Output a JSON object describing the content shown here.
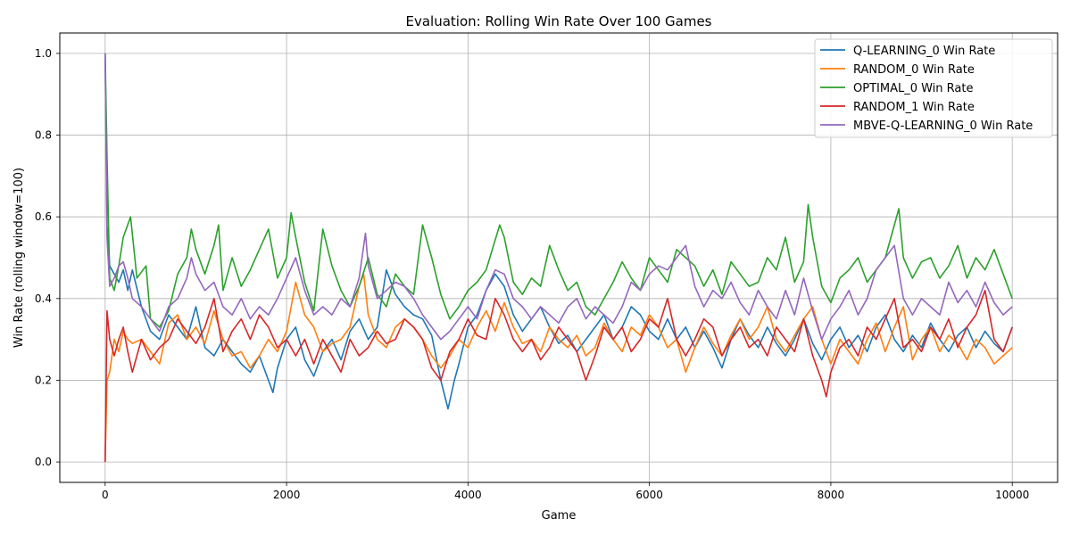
{
  "chart_data": {
    "type": "line",
    "title": "Evaluation: Rolling Win Rate Over 100 Games",
    "xlabel": "Game",
    "ylabel": "Win Rate (rolling window=100)",
    "xlim": [
      -500,
      10500
    ],
    "ylim": [
      -0.05,
      1.05
    ],
    "xticks": [
      0,
      2000,
      4000,
      6000,
      8000,
      10000
    ],
    "xtick_labels": [
      "0",
      "2000",
      "4000",
      "6000",
      "8000",
      "10000"
    ],
    "yticks": [
      0.0,
      0.2,
      0.4,
      0.6,
      0.8,
      1.0
    ],
    "ytick_labels": [
      "0.0",
      "0.2",
      "0.4",
      "0.6",
      "0.8",
      "1.0"
    ],
    "grid": true,
    "legend_position": "top-right",
    "series": [
      {
        "name": "Q-LEARNING_0 Win Rate",
        "color": "#1f77b4",
        "x": [
          0,
          20,
          50,
          100,
          150,
          200,
          250,
          300,
          400,
          500,
          600,
          700,
          800,
          900,
          1000,
          1100,
          1200,
          1300,
          1400,
          1500,
          1600,
          1700,
          1800,
          1850,
          1900,
          2000,
          2100,
          2200,
          2300,
          2400,
          2500,
          2600,
          2700,
          2800,
          2900,
          3000,
          3100,
          3200,
          3300,
          3400,
          3500,
          3600,
          3700,
          3780,
          3850,
          3900,
          4000,
          4100,
          4200,
          4300,
          4400,
          4500,
          4600,
          4700,
          4800,
          4900,
          5000,
          5100,
          5200,
          5300,
          5400,
          5500,
          5600,
          5700,
          5800,
          5900,
          6000,
          6100,
          6200,
          6300,
          6400,
          6500,
          6600,
          6700,
          6800,
          6900,
          7000,
          7100,
          7200,
          7300,
          7400,
          7500,
          7600,
          7700,
          7800,
          7900,
          8000,
          8100,
          8200,
          8300,
          8400,
          8500,
          8600,
          8700,
          8800,
          8900,
          9000,
          9100,
          9200,
          9300,
          9400,
          9500,
          9600,
          9700,
          9800,
          9900,
          10000
        ],
        "y": [
          1.0,
          0.58,
          0.48,
          0.46,
          0.44,
          0.47,
          0.42,
          0.47,
          0.38,
          0.32,
          0.3,
          0.36,
          0.33,
          0.3,
          0.38,
          0.28,
          0.26,
          0.3,
          0.27,
          0.24,
          0.22,
          0.26,
          0.2,
          0.17,
          0.23,
          0.3,
          0.33,
          0.25,
          0.21,
          0.27,
          0.3,
          0.25,
          0.32,
          0.35,
          0.3,
          0.33,
          0.47,
          0.41,
          0.38,
          0.36,
          0.35,
          0.31,
          0.2,
          0.13,
          0.2,
          0.24,
          0.33,
          0.36,
          0.42,
          0.46,
          0.43,
          0.36,
          0.32,
          0.35,
          0.38,
          0.33,
          0.29,
          0.31,
          0.27,
          0.3,
          0.33,
          0.36,
          0.3,
          0.33,
          0.38,
          0.36,
          0.32,
          0.3,
          0.35,
          0.3,
          0.33,
          0.28,
          0.32,
          0.28,
          0.23,
          0.3,
          0.35,
          0.31,
          0.28,
          0.33,
          0.29,
          0.26,
          0.3,
          0.35,
          0.29,
          0.25,
          0.3,
          0.33,
          0.28,
          0.31,
          0.27,
          0.33,
          0.36,
          0.3,
          0.27,
          0.31,
          0.28,
          0.34,
          0.3,
          0.27,
          0.31,
          0.33,
          0.28,
          0.32,
          0.29,
          0.27,
          0.33
        ]
      },
      {
        "name": "RANDOM_0 Win Rate",
        "color": "#ff7f0e",
        "x": [
          0,
          20,
          50,
          100,
          150,
          200,
          250,
          300,
          400,
          500,
          600,
          700,
          800,
          900,
          1000,
          1100,
          1200,
          1300,
          1400,
          1500,
          1600,
          1700,
          1800,
          1900,
          2000,
          2100,
          2200,
          2300,
          2400,
          2500,
          2600,
          2700,
          2800,
          2850,
          2900,
          3000,
          3100,
          3200,
          3300,
          3400,
          3500,
          3600,
          3700,
          3800,
          3900,
          4000,
          4100,
          4200,
          4300,
          4400,
          4500,
          4600,
          4700,
          4800,
          4900,
          5000,
          5100,
          5200,
          5300,
          5400,
          5500,
          5600,
          5700,
          5800,
          5900,
          6000,
          6100,
          6200,
          6300,
          6400,
          6500,
          6600,
          6700,
          6800,
          6900,
          7000,
          7100,
          7200,
          7300,
          7400,
          7500,
          7600,
          7700,
          7800,
          7900,
          8000,
          8100,
          8200,
          8300,
          8400,
          8500,
          8600,
          8700,
          8800,
          8900,
          9000,
          9100,
          9200,
          9300,
          9400,
          9500,
          9600,
          9700,
          9800,
          9900,
          10000
        ],
        "y": [
          0.0,
          0.2,
          0.22,
          0.3,
          0.27,
          0.32,
          0.3,
          0.29,
          0.3,
          0.27,
          0.24,
          0.34,
          0.36,
          0.3,
          0.33,
          0.29,
          0.37,
          0.3,
          0.26,
          0.27,
          0.23,
          0.26,
          0.3,
          0.27,
          0.32,
          0.44,
          0.36,
          0.33,
          0.27,
          0.29,
          0.3,
          0.33,
          0.43,
          0.46,
          0.36,
          0.3,
          0.28,
          0.33,
          0.35,
          0.33,
          0.3,
          0.26,
          0.23,
          0.26,
          0.3,
          0.28,
          0.33,
          0.37,
          0.32,
          0.39,
          0.33,
          0.29,
          0.3,
          0.27,
          0.33,
          0.3,
          0.28,
          0.31,
          0.26,
          0.28,
          0.34,
          0.3,
          0.27,
          0.33,
          0.31,
          0.36,
          0.33,
          0.28,
          0.3,
          0.22,
          0.28,
          0.33,
          0.29,
          0.26,
          0.31,
          0.35,
          0.3,
          0.33,
          0.38,
          0.3,
          0.27,
          0.31,
          0.35,
          0.38,
          0.3,
          0.24,
          0.3,
          0.27,
          0.24,
          0.3,
          0.34,
          0.27,
          0.33,
          0.38,
          0.25,
          0.3,
          0.33,
          0.27,
          0.31,
          0.29,
          0.25,
          0.3,
          0.28,
          0.24,
          0.26,
          0.28
        ]
      },
      {
        "name": "OPTIMAL_0 Win Rate",
        "color": "#2ca02c",
        "x": [
          0,
          20,
          50,
          100,
          150,
          200,
          280,
          350,
          450,
          500,
          600,
          700,
          800,
          900,
          950,
          1000,
          1100,
          1200,
          1250,
          1300,
          1400,
          1500,
          1600,
          1700,
          1800,
          1900,
          2000,
          2050,
          2100,
          2200,
          2300,
          2400,
          2500,
          2600,
          2700,
          2800,
          2900,
          3000,
          3100,
          3200,
          3300,
          3400,
          3500,
          3600,
          3700,
          3800,
          3900,
          4000,
          4100,
          4200,
          4350,
          4400,
          4500,
          4600,
          4700,
          4800,
          4900,
          5000,
          5100,
          5200,
          5300,
          5400,
          5500,
          5600,
          5700,
          5800,
          5900,
          6000,
          6100,
          6200,
          6300,
          6400,
          6500,
          6600,
          6700,
          6800,
          6900,
          7000,
          7100,
          7200,
          7300,
          7400,
          7500,
          7600,
          7700,
          7750,
          7800,
          7900,
          8000,
          8100,
          8200,
          8300,
          8400,
          8500,
          8600,
          8700,
          8750,
          8800,
          8900,
          9000,
          9100,
          9200,
          9300,
          9400,
          9500,
          9600,
          9700,
          9800,
          9900,
          10000
        ],
        "y": [
          1.0,
          0.75,
          0.45,
          0.42,
          0.48,
          0.55,
          0.6,
          0.45,
          0.48,
          0.35,
          0.33,
          0.37,
          0.46,
          0.5,
          0.57,
          0.52,
          0.46,
          0.53,
          0.58,
          0.42,
          0.5,
          0.43,
          0.47,
          0.52,
          0.57,
          0.45,
          0.5,
          0.61,
          0.55,
          0.44,
          0.37,
          0.57,
          0.48,
          0.42,
          0.38,
          0.43,
          0.5,
          0.41,
          0.38,
          0.46,
          0.43,
          0.41,
          0.58,
          0.5,
          0.41,
          0.35,
          0.38,
          0.42,
          0.44,
          0.47,
          0.58,
          0.55,
          0.44,
          0.41,
          0.45,
          0.43,
          0.53,
          0.47,
          0.42,
          0.44,
          0.38,
          0.36,
          0.4,
          0.44,
          0.49,
          0.45,
          0.42,
          0.5,
          0.47,
          0.44,
          0.52,
          0.5,
          0.48,
          0.43,
          0.47,
          0.41,
          0.49,
          0.46,
          0.43,
          0.44,
          0.5,
          0.47,
          0.55,
          0.44,
          0.49,
          0.63,
          0.55,
          0.43,
          0.39,
          0.45,
          0.47,
          0.5,
          0.44,
          0.47,
          0.5,
          0.58,
          0.62,
          0.5,
          0.45,
          0.49,
          0.5,
          0.45,
          0.48,
          0.53,
          0.45,
          0.5,
          0.47,
          0.52,
          0.46,
          0.4
        ]
      },
      {
        "name": "RANDOM_1 Win Rate",
        "color": "#d62728",
        "x": [
          0,
          20,
          50,
          100,
          150,
          200,
          250,
          300,
          400,
          500,
          600,
          700,
          800,
          900,
          1000,
          1100,
          1200,
          1300,
          1400,
          1500,
          1600,
          1700,
          1800,
          1900,
          2000,
          2100,
          2200,
          2300,
          2400,
          2500,
          2600,
          2700,
          2800,
          2900,
          3000,
          3100,
          3200,
          3300,
          3400,
          3500,
          3600,
          3700,
          3800,
          3900,
          4000,
          4100,
          4200,
          4300,
          4400,
          4500,
          4600,
          4700,
          4800,
          4900,
          5000,
          5100,
          5200,
          5300,
          5400,
          5500,
          5600,
          5700,
          5800,
          5900,
          6000,
          6100,
          6200,
          6300,
          6400,
          6500,
          6600,
          6700,
          6800,
          6900,
          7000,
          7100,
          7200,
          7300,
          7400,
          7500,
          7600,
          7700,
          7800,
          7900,
          7950,
          8000,
          8100,
          8200,
          8300,
          8400,
          8500,
          8600,
          8700,
          8800,
          8900,
          9000,
          9100,
          9200,
          9300,
          9400,
          9500,
          9600,
          9700,
          9800,
          9900,
          10000
        ],
        "y": [
          0.0,
          0.37,
          0.3,
          0.26,
          0.3,
          0.33,
          0.27,
          0.22,
          0.3,
          0.25,
          0.28,
          0.3,
          0.35,
          0.32,
          0.29,
          0.33,
          0.4,
          0.27,
          0.32,
          0.35,
          0.3,
          0.36,
          0.33,
          0.28,
          0.3,
          0.26,
          0.3,
          0.24,
          0.3,
          0.26,
          0.22,
          0.3,
          0.26,
          0.28,
          0.32,
          0.29,
          0.3,
          0.35,
          0.33,
          0.3,
          0.23,
          0.2,
          0.27,
          0.3,
          0.35,
          0.31,
          0.3,
          0.4,
          0.36,
          0.3,
          0.27,
          0.3,
          0.25,
          0.28,
          0.33,
          0.3,
          0.27,
          0.2,
          0.26,
          0.33,
          0.3,
          0.33,
          0.27,
          0.3,
          0.35,
          0.33,
          0.4,
          0.3,
          0.26,
          0.3,
          0.35,
          0.33,
          0.26,
          0.3,
          0.33,
          0.28,
          0.3,
          0.26,
          0.33,
          0.3,
          0.27,
          0.35,
          0.26,
          0.2,
          0.16,
          0.22,
          0.28,
          0.3,
          0.26,
          0.33,
          0.3,
          0.35,
          0.4,
          0.28,
          0.3,
          0.27,
          0.33,
          0.3,
          0.35,
          0.28,
          0.33,
          0.36,
          0.42,
          0.3,
          0.27,
          0.33
        ]
      },
      {
        "name": "MBVE-Q-LEARNING_0 Win Rate",
        "color": "#9467bd",
        "x": [
          0,
          20,
          50,
          100,
          150,
          200,
          250,
          300,
          400,
          500,
          600,
          700,
          800,
          900,
          950,
          1000,
          1100,
          1200,
          1300,
          1400,
          1500,
          1600,
          1700,
          1800,
          1900,
          2000,
          2100,
          2200,
          2300,
          2400,
          2500,
          2600,
          2700,
          2800,
          2870,
          2900,
          3000,
          3100,
          3200,
          3300,
          3400,
          3500,
          3600,
          3700,
          3800,
          3900,
          4000,
          4100,
          4200,
          4300,
          4400,
          4500,
          4600,
          4700,
          4800,
          4900,
          5000,
          5100,
          5200,
          5300,
          5400,
          5500,
          5600,
          5700,
          5800,
          5900,
          6000,
          6100,
          6200,
          6300,
          6400,
          6500,
          6600,
          6700,
          6800,
          6900,
          7000,
          7100,
          7200,
          7300,
          7400,
          7500,
          7600,
          7700,
          7800,
          7900,
          8000,
          8100,
          8200,
          8300,
          8400,
          8500,
          8600,
          8700,
          8800,
          8900,
          9000,
          9100,
          9200,
          9300,
          9400,
          9500,
          9600,
          9700,
          9800,
          9900,
          10000
        ],
        "y": [
          1.0,
          0.55,
          0.43,
          0.45,
          0.48,
          0.49,
          0.45,
          0.4,
          0.38,
          0.35,
          0.32,
          0.38,
          0.4,
          0.45,
          0.5,
          0.46,
          0.42,
          0.44,
          0.38,
          0.36,
          0.4,
          0.35,
          0.38,
          0.36,
          0.4,
          0.45,
          0.5,
          0.42,
          0.36,
          0.38,
          0.36,
          0.4,
          0.38,
          0.45,
          0.56,
          0.48,
          0.4,
          0.42,
          0.44,
          0.43,
          0.4,
          0.36,
          0.33,
          0.3,
          0.32,
          0.35,
          0.38,
          0.35,
          0.42,
          0.47,
          0.46,
          0.4,
          0.38,
          0.35,
          0.38,
          0.36,
          0.34,
          0.38,
          0.4,
          0.35,
          0.38,
          0.36,
          0.34,
          0.38,
          0.44,
          0.42,
          0.46,
          0.48,
          0.47,
          0.5,
          0.53,
          0.43,
          0.38,
          0.42,
          0.4,
          0.44,
          0.39,
          0.36,
          0.42,
          0.38,
          0.35,
          0.42,
          0.36,
          0.45,
          0.37,
          0.3,
          0.35,
          0.38,
          0.42,
          0.36,
          0.4,
          0.47,
          0.5,
          0.53,
          0.4,
          0.36,
          0.4,
          0.38,
          0.36,
          0.44,
          0.39,
          0.42,
          0.38,
          0.44,
          0.39,
          0.36,
          0.38
        ]
      }
    ]
  }
}
